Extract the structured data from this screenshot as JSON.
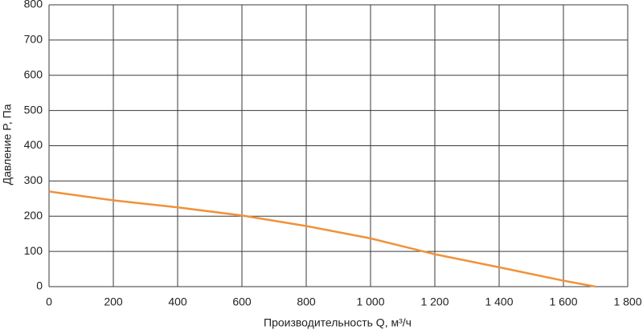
{
  "chart_data": {
    "type": "line",
    "x_label": "Производительность Q, м³/ч",
    "y_label": "Давление P, Па",
    "x": [
      0,
      200,
      400,
      600,
      800,
      1000,
      1200,
      1400,
      1600,
      1700
    ],
    "series": [
      {
        "name": "P",
        "color": "#f0923a",
        "values": [
          270,
          245,
          225,
          202,
          172,
          137,
          92,
          55,
          17,
          0
        ]
      }
    ],
    "xlim": [
      0,
      1800
    ],
    "xticks": [
      0,
      200,
      400,
      600,
      800,
      {
        "value": 1000,
        "label": "1 000"
      },
      {
        "value": 1200,
        "label": "1 200"
      },
      {
        "value": 1400,
        "label": "1 400"
      },
      {
        "value": 1600,
        "label": "1 600"
      },
      {
        "value": 1800,
        "label": "1 800"
      }
    ],
    "ylim": [
      0,
      800
    ],
    "yticks": [
      0,
      100,
      200,
      300,
      400,
      500,
      600,
      700,
      800
    ],
    "grid": true
  }
}
